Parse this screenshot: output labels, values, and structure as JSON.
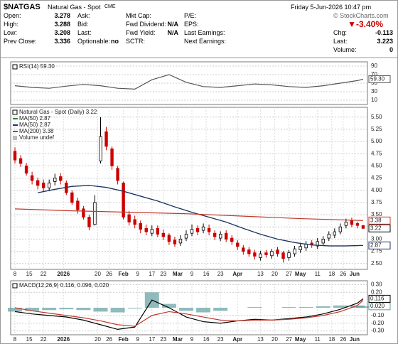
{
  "header": {
    "symbol": "$NATGAS",
    "name": "Natural Gas - Spot",
    "exchange": "CME",
    "date": "Friday  5-Jun-2026 10:47 pm",
    "source": "© StockCharts.com",
    "change_pct": "▼-3.40%",
    "columns": [
      [
        {
          "label": "Open:",
          "value": "3.278"
        },
        {
          "label": "High:",
          "value": "3.288"
        },
        {
          "label": "Low:",
          "value": "3.208"
        },
        {
          "label": "Prev Close:",
          "value": "3.336"
        }
      ],
      [
        {
          "label": "Ask:"
        },
        {
          "label": "Bid:"
        },
        {
          "label": "Last:"
        },
        {
          "label": "Optionable:",
          "value": "no"
        }
      ],
      [
        {
          "label": "Mkt Cap:"
        },
        {
          "label": "Fwd Dividend:",
          "value": "N/A"
        },
        {
          "label": "Fwd Yield:",
          "value": "N/A"
        },
        {
          "label": "SCTR:"
        }
      ],
      [
        {
          "label": "P/E:"
        },
        {
          "label": "EPS:"
        },
        {
          "label": "Last Earnings:"
        },
        {
          "label": "Next Earnings:"
        }
      ],
      [
        {
          "label": "Chg:",
          "value": "-0.113"
        },
        {
          "label": "Last:",
          "value": "3.223"
        },
        {
          "label": "Volume:",
          "value": "0"
        }
      ]
    ]
  },
  "chart_data": [
    {
      "type": "line",
      "title": "RSI(14) 59.30",
      "xlim": [
        -1.5,
        123.5
      ],
      "ylim": [
        0,
        100
      ],
      "yticks": [
        10,
        30,
        50,
        70,
        90
      ],
      "series": [
        {
          "color": "#555555",
          "last_label": "59.30",
          "x": [
            0,
            6,
            12,
            18,
            24,
            30,
            36,
            42,
            48,
            54,
            60,
            66,
            72,
            78,
            84,
            90,
            96,
            102,
            108,
            114,
            120,
            122
          ],
          "values": [
            44,
            40,
            38,
            43,
            47,
            44,
            38,
            36,
            58,
            70,
            52,
            42,
            40,
            44,
            48,
            46,
            42,
            40,
            44,
            50,
            56,
            59.3
          ]
        }
      ]
    },
    {
      "type": "candlestick",
      "title": "Natural Gas - Spot (Daily) 3.22",
      "last_label": "3.22",
      "legend_note": "Volume undef",
      "up_color": "#000000",
      "down_color": "#cc0000",
      "xlim": [
        -1.5,
        123.5
      ],
      "ylim": [
        2.38,
        5.7
      ],
      "yticks": [
        {
          "value": 2.5,
          "label": "2.50"
        },
        2.75,
        {
          "value": 3,
          "label": "3.00"
        },
        3.25,
        {
          "value": 3.5,
          "label": "3.50"
        },
        3.75,
        {
          "value": 4,
          "label": "4.00"
        },
        4.25,
        {
          "value": 4.5,
          "label": "4.50"
        },
        4.75,
        {
          "value": 5,
          "label": "5.00"
        },
        5.25,
        {
          "value": 5.5,
          "label": "5.50"
        }
      ],
      "xticks": [
        {
          "value": 0,
          "label": "8"
        },
        {
          "value": 5,
          "label": "15"
        },
        {
          "value": 10,
          "label": "22"
        },
        {
          "value": 17,
          "label": "2026"
        },
        {
          "value": 29,
          "label": "20"
        },
        {
          "value": 33,
          "label": "26"
        },
        {
          "value": 38,
          "label": "Feb"
        },
        {
          "value": 43,
          "label": "9"
        },
        {
          "value": 48,
          "label": "17"
        },
        {
          "value": 52,
          "label": "23"
        },
        {
          "value": 57,
          "label": "Mar"
        },
        {
          "value": 62,
          "label": "9"
        },
        {
          "value": 67,
          "label": "16"
        },
        {
          "value": 72,
          "label": "23"
        },
        {
          "value": 78,
          "label": "Apr"
        },
        {
          "value": 86,
          "label": "13"
        },
        {
          "value": 91,
          "label": "20"
        },
        {
          "value": 96,
          "label": "27"
        },
        {
          "value": 100,
          "label": "May"
        },
        {
          "value": 106,
          "label": "11"
        },
        {
          "value": 111,
          "label": "18"
        },
        {
          "value": 115,
          "label": "26"
        },
        {
          "value": 119,
          "label": "Jun"
        }
      ],
      "x": [
        0,
        2,
        4,
        6,
        8,
        10,
        12,
        14,
        16,
        18,
        20,
        22,
        24,
        26,
        28,
        30,
        32,
        34,
        36,
        38,
        40,
        42,
        44,
        46,
        48,
        50,
        52,
        54,
        56,
        58,
        60,
        62,
        64,
        66,
        68,
        70,
        72,
        74,
        76,
        78,
        80,
        82,
        84,
        86,
        88,
        90,
        92,
        94,
        96,
        98,
        100,
        102,
        104,
        106,
        108,
        110,
        112,
        114,
        116,
        118,
        120,
        122
      ],
      "open": [
        4.8,
        4.65,
        4.5,
        4.3,
        4.2,
        4.15,
        4.05,
        4.18,
        4.28,
        4.15,
        3.95,
        3.78,
        3.62,
        3.45,
        3.3,
        4.6,
        5.2,
        4.85,
        4.45,
        4.15,
        3.5,
        3.4,
        3.32,
        3.22,
        3.12,
        3.22,
        3.12,
        3.08,
        2.98,
        2.92,
        3.02,
        3.12,
        3.22,
        3.18,
        3.22,
        3.12,
        3.02,
        3.12,
        3.02,
        2.92,
        2.82,
        2.78,
        2.72,
        2.62,
        2.72,
        2.66,
        2.78,
        2.72,
        2.62,
        2.7,
        2.78,
        2.82,
        2.92,
        2.86,
        2.92,
        3.02,
        3.08,
        3.15,
        3.28,
        3.38,
        3.32,
        3.278
      ],
      "high": [
        4.88,
        4.72,
        4.56,
        4.38,
        4.26,
        4.22,
        4.22,
        4.34,
        4.35,
        4.2,
        4.0,
        3.85,
        3.68,
        3.5,
        3.9,
        5.5,
        5.3,
        4.9,
        4.5,
        4.18,
        3.58,
        3.48,
        3.38,
        3.3,
        3.28,
        3.28,
        3.2,
        3.12,
        3.05,
        3.08,
        3.18,
        3.3,
        3.28,
        3.32,
        3.3,
        3.18,
        3.16,
        3.18,
        3.08,
        2.98,
        2.88,
        2.84,
        2.78,
        2.76,
        2.78,
        2.8,
        2.84,
        2.76,
        2.78,
        2.86,
        2.92,
        2.96,
        2.98,
        3.02,
        3.06,
        3.16,
        3.22,
        3.32,
        3.42,
        3.44,
        3.36,
        3.288
      ],
      "low": [
        4.55,
        4.48,
        4.3,
        4.12,
        4.02,
        3.98,
        3.98,
        4.1,
        4.12,
        3.9,
        3.7,
        3.52,
        3.4,
        3.18,
        3.28,
        4.55,
        4.82,
        4.42,
        4.12,
        3.4,
        3.28,
        3.22,
        3.12,
        3.08,
        3.06,
        3.04,
        2.98,
        2.88,
        2.84,
        2.86,
        2.96,
        3.06,
        3.08,
        3.12,
        3.08,
        2.98,
        2.96,
        2.94,
        2.88,
        2.78,
        2.68,
        2.64,
        2.58,
        2.56,
        2.62,
        2.6,
        2.64,
        2.52,
        2.56,
        2.64,
        2.72,
        2.76,
        2.82,
        2.8,
        2.86,
        2.96,
        3.02,
        3.1,
        3.22,
        3.24,
        3.22,
        3.208
      ],
      "close": [
        4.62,
        4.55,
        4.35,
        4.2,
        4.1,
        4.05,
        4.15,
        4.25,
        4.2,
        3.95,
        3.75,
        3.6,
        3.45,
        3.25,
        3.75,
        5.1,
        4.9,
        4.5,
        4.2,
        3.45,
        3.35,
        3.3,
        3.2,
        3.15,
        3.2,
        3.1,
        3.05,
        2.95,
        2.9,
        3.0,
        3.1,
        3.2,
        3.15,
        3.25,
        3.15,
        3.05,
        3.1,
        3.0,
        2.95,
        2.85,
        2.75,
        2.7,
        2.65,
        2.7,
        2.68,
        2.75,
        2.7,
        2.6,
        2.72,
        2.8,
        2.85,
        2.9,
        2.88,
        2.95,
        3.0,
        3.1,
        3.15,
        3.25,
        3.35,
        3.3,
        3.28,
        3.22
      ],
      "series": [
        {
          "name": "MA(50) 2.87",
          "color": "#2e8b2e",
          "x": [
            8,
            14,
            20,
            26,
            32,
            38,
            44,
            50,
            56,
            62,
            68,
            74,
            80,
            86,
            92,
            98,
            104,
            110,
            116,
            122
          ],
          "values": [
            3.95,
            4.02,
            4.08,
            4.1,
            4.06,
            3.98,
            3.88,
            3.78,
            3.66,
            3.55,
            3.45,
            3.35,
            3.22,
            3.1,
            3.0,
            2.93,
            2.88,
            2.86,
            2.86,
            2.87
          ]
        },
        {
          "name": "MA(50) 2.87",
          "color": "#1f2f6b",
          "last_label": "2.87",
          "x": [
            8,
            14,
            20,
            26,
            32,
            38,
            44,
            50,
            56,
            62,
            68,
            74,
            80,
            86,
            92,
            98,
            104,
            110,
            116,
            122
          ],
          "values": [
            3.95,
            4.02,
            4.08,
            4.1,
            4.06,
            3.98,
            3.88,
            3.78,
            3.66,
            3.55,
            3.45,
            3.35,
            3.22,
            3.1,
            3.0,
            2.93,
            2.88,
            2.86,
            2.86,
            2.87
          ]
        },
        {
          "name": "MA(200) 3.38",
          "color": "#c0392b",
          "last_label": "3.38",
          "x": [
            0,
            20,
            40,
            60,
            80,
            100,
            122
          ],
          "values": [
            3.62,
            3.58,
            3.55,
            3.52,
            3.47,
            3.42,
            3.38
          ]
        }
      ]
    },
    {
      "type": "line",
      "title": "MACD(12,26,9) 0.116, 0.096, 0.020",
      "xlim": [
        -1.5,
        123.5
      ],
      "ylim": [
        -0.35,
        0.35
      ],
      "yticks": [
        {
          "value": -0.3,
          "label": "-0.30"
        },
        {
          "value": -0.2,
          "label": "-0.20"
        },
        {
          "value": -0.1,
          "label": "-0.10"
        },
        {
          "value": 0.2,
          "label": "0.20"
        },
        {
          "value": 0.3,
          "label": "0.30"
        }
      ],
      "xticks": [
        {
          "value": 0,
          "label": "8"
        },
        {
          "value": 5,
          "label": "15"
        },
        {
          "value": 10,
          "label": "22"
        },
        {
          "value": 17,
          "label": "2026"
        },
        {
          "value": 29,
          "label": "20"
        },
        {
          "value": 33,
          "label": "26"
        },
        {
          "value": 38,
          "label": "Feb"
        },
        {
          "value": 43,
          "label": "9"
        },
        {
          "value": 48,
          "label": "17"
        },
        {
          "value": 52,
          "label": "23"
        },
        {
          "value": 57,
          "label": "Mar"
        },
        {
          "value": 62,
          "label": "9"
        },
        {
          "value": 67,
          "label": "16"
        },
        {
          "value": 72,
          "label": "23"
        },
        {
          "value": 78,
          "label": "Apr"
        },
        {
          "value": 86,
          "label": "13"
        },
        {
          "value": 91,
          "label": "20"
        },
        {
          "value": 96,
          "label": "27"
        },
        {
          "value": 100,
          "label": "May"
        },
        {
          "value": 106,
          "label": "11"
        },
        {
          "value": 111,
          "label": "18"
        },
        {
          "value": 115,
          "label": "26"
        },
        {
          "value": 119,
          "label": "Jun"
        }
      ],
      "series": [
        {
          "style": "bar",
          "color": "#5f9ea0",
          "last_label": "0.020",
          "x": [
            0,
            6,
            12,
            18,
            24,
            30,
            36,
            42,
            48,
            54,
            60,
            66,
            72,
            78,
            84,
            90,
            96,
            102,
            108,
            114,
            120,
            122
          ],
          "values": [
            -0.05,
            -0.04,
            -0.03,
            -0.02,
            -0.03,
            -0.05,
            -0.06,
            -0.01,
            0.2,
            0.05,
            -0.04,
            -0.06,
            -0.04,
            0.0,
            0.01,
            0.0,
            0.01,
            0.01,
            0.02,
            0.03,
            0.03,
            0.02
          ]
        },
        {
          "color": "#000000",
          "last_label": "0.116",
          "x": [
            0,
            6,
            12,
            18,
            24,
            30,
            36,
            42,
            48,
            54,
            60,
            66,
            72,
            78,
            84,
            90,
            96,
            102,
            108,
            114,
            120,
            122
          ],
          "values": [
            -0.05,
            -0.08,
            -0.1,
            -0.12,
            -0.16,
            -0.22,
            -0.28,
            -0.25,
            0.1,
            0.0,
            -0.12,
            -0.18,
            -0.2,
            -0.17,
            -0.15,
            -0.16,
            -0.14,
            -0.12,
            -0.08,
            -0.02,
            0.06,
            0.116
          ]
        },
        {
          "color": "#c0392b",
          "x": [
            0,
            6,
            12,
            18,
            24,
            30,
            36,
            42,
            48,
            54,
            60,
            66,
            72,
            78,
            84,
            90,
            96,
            102,
            108,
            114,
            120,
            122
          ],
          "values": [
            0.0,
            -0.04,
            -0.07,
            -0.1,
            -0.13,
            -0.17,
            -0.22,
            -0.24,
            -0.1,
            -0.05,
            -0.08,
            -0.12,
            -0.16,
            -0.17,
            -0.16,
            -0.16,
            -0.15,
            -0.13,
            -0.1,
            -0.05,
            0.03,
            0.096
          ]
        }
      ]
    }
  ]
}
